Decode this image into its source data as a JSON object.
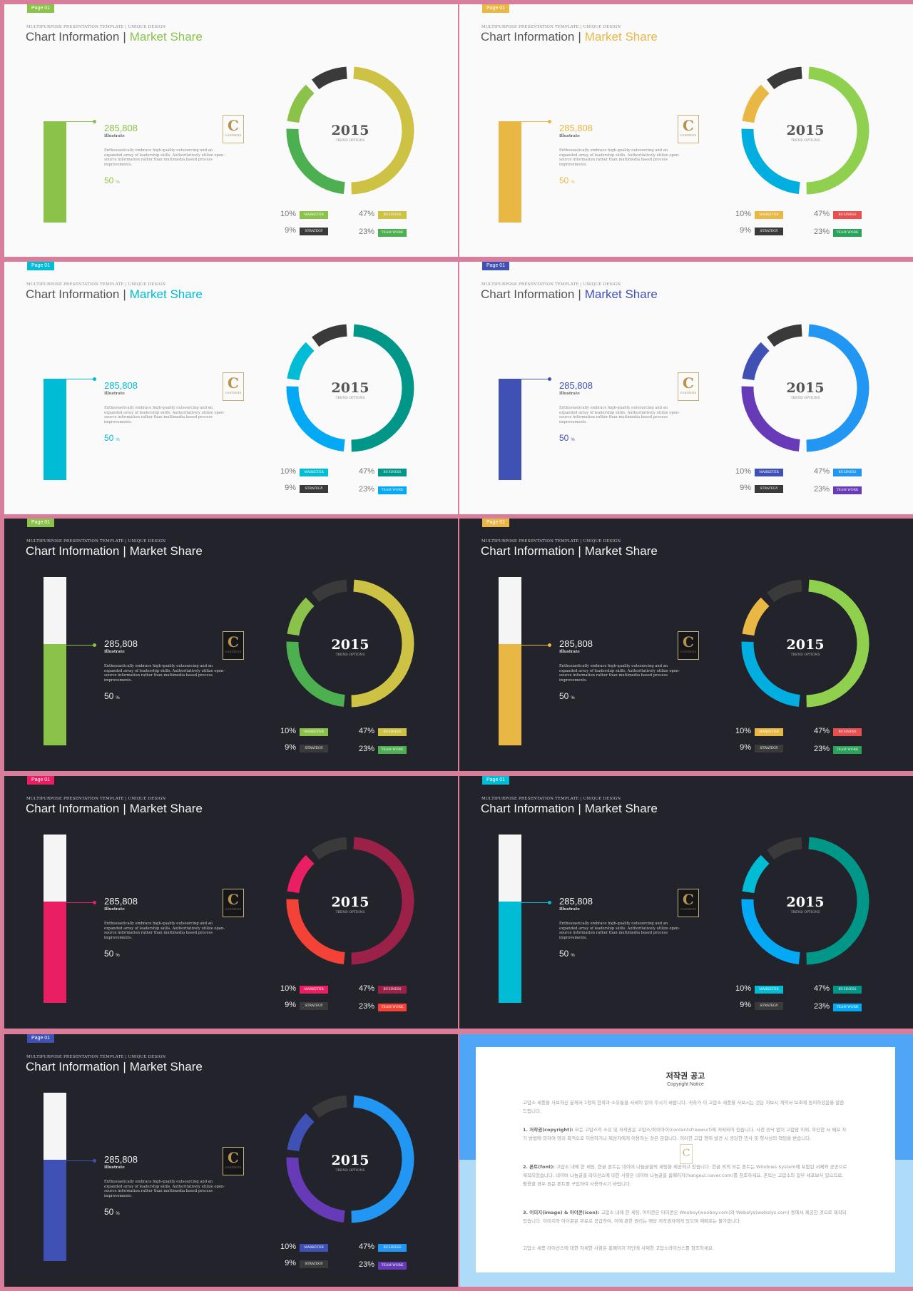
{
  "common": {
    "kicker": "MULTIPURPOSE PRESENTATION TEMPLATE | UNIQUE DESIGN",
    "title_main": "Chart Information",
    "title_separator": "|",
    "title_accent": "Market Share",
    "value": "285,808",
    "value_label": "Illustrate",
    "description": "Enthusiastically embrace high-quality outsourcing and an expanded array of leadership skills. Authoritatively utilize open-source information rather than multimedia based process improvements.",
    "percent": "50",
    "percent_unit": "%",
    "year": "2015",
    "trend_label": "TREND OPTIONS",
    "logo_letter": "C",
    "logo_text": "CONTENTS",
    "legend_labels": [
      "MARKETER",
      "STRATEGY",
      "BUSINESS",
      "TEAM WORK"
    ],
    "legend_percents": [
      "10%",
      "9%",
      "47%",
      "23%"
    ]
  },
  "slides": [
    {
      "theme": "light",
      "page_tag": "Page 01",
      "accent": "#8bc34a",
      "bar_level": 1.0,
      "legend_colors": [
        "#8bc34a",
        "#3a3a3a",
        "#cdc243",
        "#4caf50"
      ],
      "chart_data": {
        "type": "pie",
        "segments": [
          {
            "label": "BUSINESS",
            "value": 47,
            "color": "#cdc243"
          },
          {
            "label": "TEAM WORK",
            "value": 23,
            "color": "#4caf50"
          },
          {
            "label": "MARKETER",
            "value": 10,
            "color": "#8bc34a"
          },
          {
            "label": "STRATEGY",
            "value": 9,
            "color": "#3a3a3a"
          }
        ]
      }
    },
    {
      "theme": "light",
      "page_tag": "Page 01",
      "accent": "#e9b744",
      "bar_level": 1.0,
      "legend_colors": [
        "#e9b744",
        "#3a3a3a",
        "#e94f4f",
        "#27a35a"
      ],
      "chart_data": {
        "type": "pie",
        "segments": [
          {
            "label": "BUSINESS",
            "value": 47,
            "color": "#8fd14f"
          },
          {
            "label": "TEAM WORK",
            "value": 23,
            "color": "#00aee0"
          },
          {
            "label": "MARKETER",
            "value": 10,
            "color": "#e9b744"
          },
          {
            "label": "STRATEGY",
            "value": 9,
            "color": "#3a3a3a"
          }
        ]
      }
    },
    {
      "theme": "light",
      "page_tag": "Page 01",
      "accent": "#00bcd4",
      "bar_level": 1.0,
      "legend_colors": [
        "#00bcd4",
        "#3a3a3a",
        "#009688",
        "#03a9f4"
      ],
      "chart_data": {
        "type": "pie",
        "segments": [
          {
            "label": "BUSINESS",
            "value": 47,
            "color": "#009688"
          },
          {
            "label": "TEAM WORK",
            "value": 23,
            "color": "#03a9f4"
          },
          {
            "label": "MARKETER",
            "value": 10,
            "color": "#00bcd4"
          },
          {
            "label": "STRATEGY",
            "value": 9,
            "color": "#3a3a3a"
          }
        ]
      }
    },
    {
      "theme": "light",
      "page_tag": "Page 01",
      "accent": "#3f51b5",
      "bar_level": 1.0,
      "legend_colors": [
        "#3f51b5",
        "#3a3a3a",
        "#2196f3",
        "#673ab7"
      ],
      "chart_data": {
        "type": "pie",
        "segments": [
          {
            "label": "BUSINESS",
            "value": 47,
            "color": "#2196f3"
          },
          {
            "label": "TEAM WORK",
            "value": 23,
            "color": "#673ab7"
          },
          {
            "label": "MARKETER",
            "value": 10,
            "color": "#3f51b5"
          },
          {
            "label": "STRATEGY",
            "value": 9,
            "color": "#3a3a3a"
          }
        ]
      }
    },
    {
      "theme": "dark",
      "page_tag": "Page 01",
      "accent": "#8bc34a",
      "bar_level": 0.6,
      "legend_colors": [
        "#8bc34a",
        "#3a3a3a",
        "#cdc243",
        "#4caf50"
      ],
      "chart_data": {
        "type": "pie",
        "segments": [
          {
            "label": "BUSINESS",
            "value": 47,
            "color": "#cdc243"
          },
          {
            "label": "TEAM WORK",
            "value": 23,
            "color": "#4caf50"
          },
          {
            "label": "MARKETER",
            "value": 10,
            "color": "#8bc34a"
          },
          {
            "label": "STRATEGY",
            "value": 9,
            "color": "#3a3a3a"
          }
        ]
      }
    },
    {
      "theme": "dark",
      "page_tag": "Page 01",
      "accent": "#e9b744",
      "bar_level": 0.6,
      "legend_colors": [
        "#e9b744",
        "#3a3a3a",
        "#e94f4f",
        "#27a35a"
      ],
      "chart_data": {
        "type": "pie",
        "segments": [
          {
            "label": "BUSINESS",
            "value": 47,
            "color": "#8fd14f"
          },
          {
            "label": "TEAM WORK",
            "value": 23,
            "color": "#00aee0"
          },
          {
            "label": "MARKETER",
            "value": 10,
            "color": "#e9b744"
          },
          {
            "label": "STRATEGY",
            "value": 9,
            "color": "#3a3a3a"
          }
        ]
      }
    },
    {
      "theme": "dark",
      "page_tag": "Page 01",
      "accent": "#e91e63",
      "bar_level": 0.6,
      "legend_colors": [
        "#e91e63",
        "#3a3a3a",
        "#9c2148",
        "#f44336"
      ],
      "chart_data": {
        "type": "pie",
        "segments": [
          {
            "label": "BUSINESS",
            "value": 47,
            "color": "#9c2148"
          },
          {
            "label": "TEAM WORK",
            "value": 23,
            "color": "#f44336"
          },
          {
            "label": "MARKETER",
            "value": 10,
            "color": "#e91e63"
          },
          {
            "label": "STRATEGY",
            "value": 9,
            "color": "#3a3a3a"
          }
        ]
      }
    },
    {
      "theme": "dark",
      "page_tag": "Page 01",
      "accent": "#00bcd4",
      "bar_level": 0.6,
      "legend_colors": [
        "#00bcd4",
        "#3a3a3a",
        "#009688",
        "#03a9f4"
      ],
      "chart_data": {
        "type": "pie",
        "segments": [
          {
            "label": "BUSINESS",
            "value": 47,
            "color": "#009688"
          },
          {
            "label": "TEAM WORK",
            "value": 23,
            "color": "#03a9f4"
          },
          {
            "label": "MARKETER",
            "value": 10,
            "color": "#00bcd4"
          },
          {
            "label": "STRATEGY",
            "value": 9,
            "color": "#3a3a3a"
          }
        ]
      }
    },
    {
      "theme": "dark",
      "page_tag": "Page 01",
      "accent": "#3f51b5",
      "bar_level": 0.6,
      "legend_colors": [
        "#3f51b5",
        "#3a3a3a",
        "#2196f3",
        "#673ab7"
      ],
      "chart_data": {
        "type": "pie",
        "segments": [
          {
            "label": "BUSINESS",
            "value": 47,
            "color": "#2196f3"
          },
          {
            "label": "TEAM WORK",
            "value": 23,
            "color": "#673ab7"
          },
          {
            "label": "MARKETER",
            "value": 10,
            "color": "#3f51b5"
          },
          {
            "label": "STRATEGY",
            "value": 9,
            "color": "#3a3a3a"
          }
        ]
      }
    }
  ],
  "notice": {
    "title": "저작권 공고",
    "subtitle": "Copyright Notice",
    "logo_letter": "C",
    "intro": "고맙소 세풍을 사보하신 분께서 1청의 한작과 소유통을 서세이 읽어 주시기 바랍니다. 귀하가 이 고맙소 세풍을 사보시는 것은 저보시 계약서 보조에 동의하셨음을 말씀드립니다.",
    "items": [
      {
        "head": "1. 저작권(copyright):",
        "text": "모든 고맙소의 소유 및 저작권은 고맙소/최미아이(contentsfreewurl)에 저작되어 있습니다. 사전 승낙 없이 고맙맘 이외, 무단한 서 배포 자기 방법에 의하여 영리 목적으로 이용하거나 제삼자에게 이용하는 것은 금합니다. 이러한 고맙 행위 발견 시 응당한 민사 및 형사상의 책임을 받습니다."
      },
      {
        "head": "2. 폰트(font):",
        "text": "고맙소 내에 한 세팅, 한글 폰트는 네이버 나눔글꼴의 세팅을 제공하고 있습니다. 한글 외의 모든 폰트는 Windows System에 포함된 서체와 공공으로 제작되었습니다. 네이버 나눔글꼴 라이선스에 대한 사항은 네이버 나눔글꼴 홈페이지(hangeul.naver.com)를 참조하세요. 폰트는 고맙소의 일부 세포보사 있으므로, 활용할 경우 원문 폰트를 구입하여 사용하시기 바랍니다."
      },
      {
        "head": "3. 이미지(image) & 아이콘(icon):",
        "text": "고맙소 내에 한 세팅, 아이콘은 아이콘은 Wooboy(wooboy.com)와 Webalys(webalys.com) 등에서 제공한 것으로 제작되었습니다. 이미지와 아이콘은 무료로 공급하여, 이에 관한 권리는 해당 저작권자에게 있으며 재배포는 불가합니다."
      }
    ],
    "outro": "고맙소 세풍 라이선스에 대한 자세한 사항은 홈페이지 하단에 사재한 고맙소라이선스를 참조하세요."
  }
}
